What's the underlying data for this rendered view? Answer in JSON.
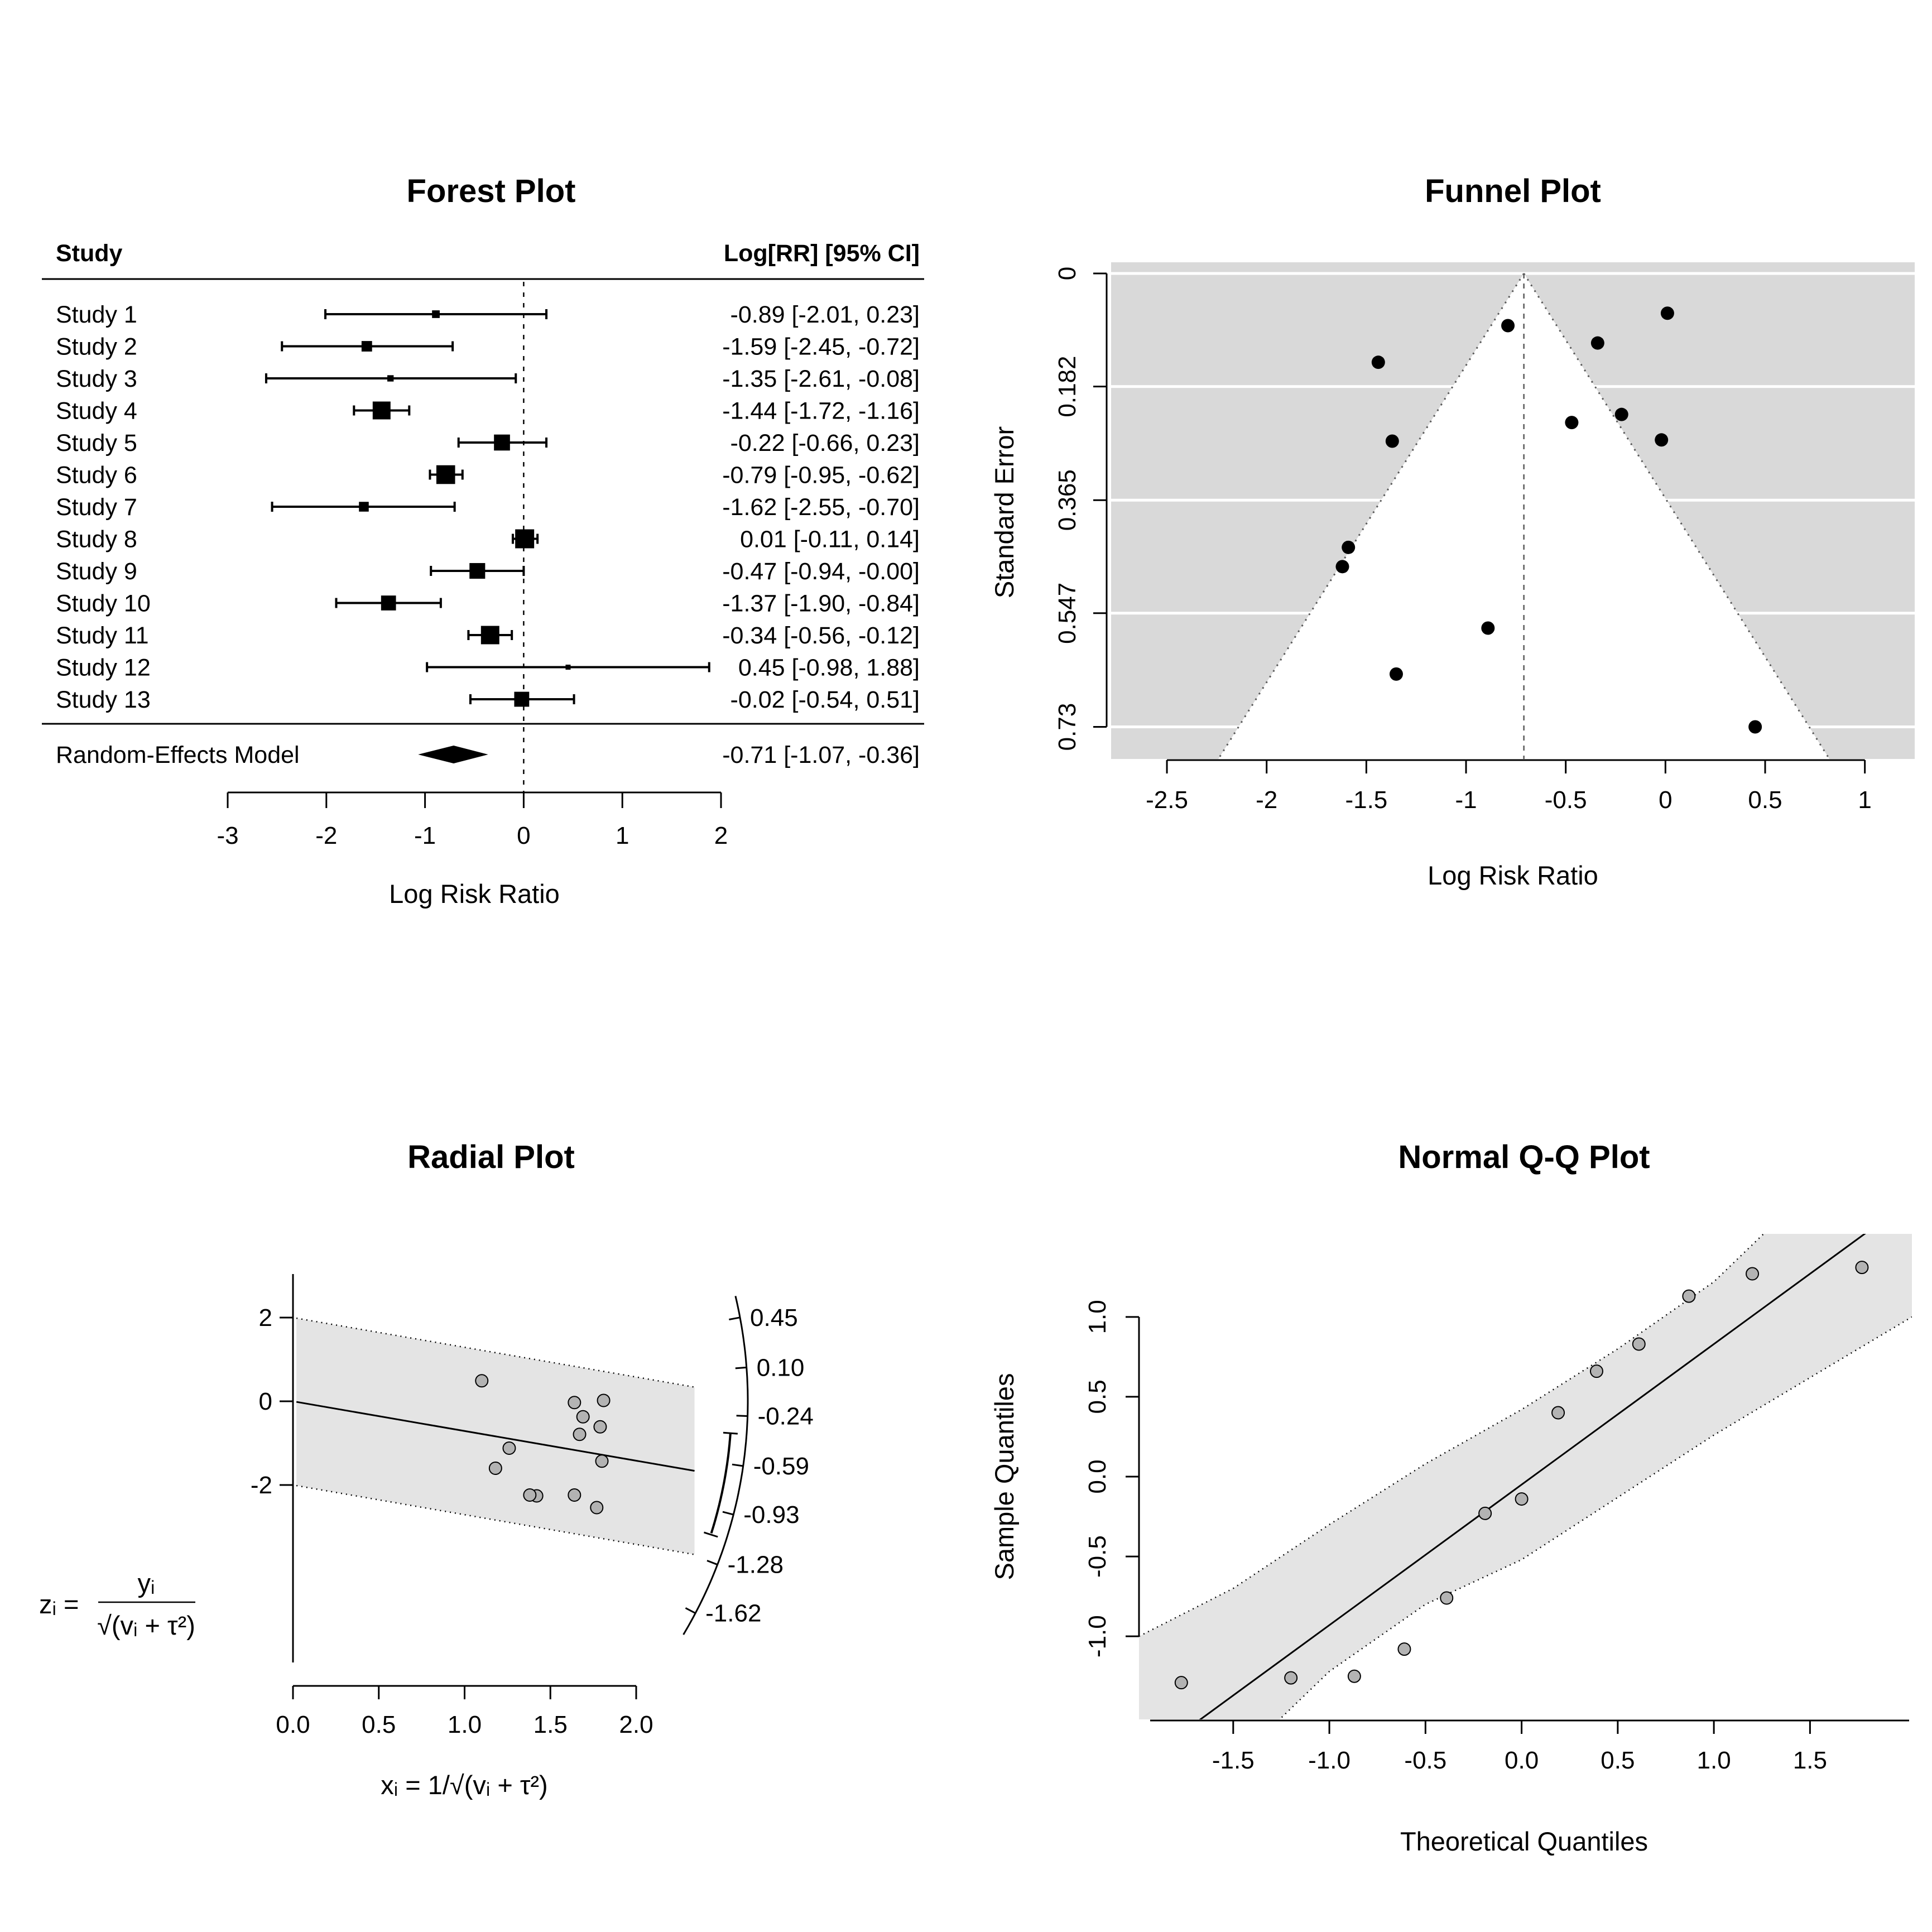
{
  "figure": {
    "background": "#ffffff",
    "point_fill_gray": "#b3b3b3",
    "point_fill_black": "#000000",
    "band_fill": "#e4e4e4",
    "funnel_shade": "#d9d9d9"
  },
  "chart_data": [
    {
      "id": "forest",
      "type": "forest",
      "title": "Forest Plot",
      "col_headers": {
        "study": "Study",
        "estimate": "Log[RR] [95% CI]"
      },
      "xlabel": "Log Risk Ratio",
      "xlim": [
        -3,
        2
      ],
      "xticks": [
        -3,
        -2,
        -1,
        0,
        1,
        2
      ],
      "xtick_labels": [
        "-3",
        "-2",
        "-1",
        "0",
        "1",
        "2"
      ],
      "reference_line": 0,
      "studies": [
        {
          "label": "Study 1",
          "yi": -0.89,
          "lb": -2.01,
          "ub": 0.23,
          "annotation": "-0.89 [-2.01,  0.23]"
        },
        {
          "label": "Study 2",
          "yi": -1.59,
          "lb": -2.45,
          "ub": -0.72,
          "annotation": "-1.59 [-2.45, -0.72]"
        },
        {
          "label": "Study 3",
          "yi": -1.35,
          "lb": -2.61,
          "ub": -0.08,
          "annotation": "-1.35 [-2.61, -0.08]"
        },
        {
          "label": "Study 4",
          "yi": -1.44,
          "lb": -1.72,
          "ub": -1.16,
          "annotation": "-1.44 [-1.72, -1.16]"
        },
        {
          "label": "Study 5",
          "yi": -0.22,
          "lb": -0.66,
          "ub": 0.23,
          "annotation": "-0.22 [-0.66,  0.23]"
        },
        {
          "label": "Study 6",
          "yi": -0.79,
          "lb": -0.95,
          "ub": -0.62,
          "annotation": "-0.79 [-0.95, -0.62]"
        },
        {
          "label": "Study 7",
          "yi": -1.62,
          "lb": -2.55,
          "ub": -0.7,
          "annotation": "-1.62 [-2.55, -0.70]"
        },
        {
          "label": "Study 8",
          "yi": 0.01,
          "lb": -0.11,
          "ub": 0.14,
          "annotation": "0.01 [-0.11,  0.14]"
        },
        {
          "label": "Study 9",
          "yi": -0.47,
          "lb": -0.94,
          "ub": 0.0,
          "annotation": "-0.47 [-0.94, -0.00]"
        },
        {
          "label": "Study 10",
          "yi": -1.37,
          "lb": -1.9,
          "ub": -0.84,
          "annotation": "-1.37 [-1.90, -0.84]"
        },
        {
          "label": "Study 11",
          "yi": -0.34,
          "lb": -0.56,
          "ub": -0.12,
          "annotation": "-0.34 [-0.56, -0.12]"
        },
        {
          "label": "Study 12",
          "yi": 0.45,
          "lb": -0.98,
          "ub": 1.88,
          "annotation": "0.45 [-0.98,  1.88]"
        },
        {
          "label": "Study 13",
          "yi": -0.02,
          "lb": -0.54,
          "ub": 0.51,
          "annotation": "-0.02 [-0.54,  0.51]"
        }
      ],
      "model": {
        "label": "Random-Effects Model",
        "yi": -0.71,
        "lb": -1.07,
        "ub": -0.36,
        "annotation": "-0.71 [-1.07, -0.36]"
      }
    },
    {
      "id": "funnel",
      "type": "funnel",
      "title": "Funnel Plot",
      "xlabel": "Log Risk Ratio",
      "ylabel": "Standard Error",
      "xlim": [
        -2.78,
        1.25
      ],
      "ylim": [
        0,
        0.782
      ],
      "xticks": [
        -2.5,
        -2,
        -1.5,
        -1,
        -0.5,
        0,
        0.5,
        1
      ],
      "xtick_labels": [
        "-2.5",
        "-2",
        "-1.5",
        "-1",
        "-0.5",
        "0",
        "0.5",
        "1"
      ],
      "yticks": [
        0,
        0.182,
        0.365,
        0.547,
        0.73
      ],
      "ytick_labels": [
        "0",
        "0.182",
        "0.365",
        "0.547",
        "0.73"
      ],
      "center": -0.71,
      "ci_z": 1.96,
      "shade_color": "#d9d9d9",
      "points": [
        {
          "x": -0.89,
          "y": 0.571
        },
        {
          "x": -1.59,
          "y": 0.441
        },
        {
          "x": -1.35,
          "y": 0.645
        },
        {
          "x": -1.44,
          "y": 0.143
        },
        {
          "x": -0.22,
          "y": 0.227
        },
        {
          "x": -0.79,
          "y": 0.084
        },
        {
          "x": -1.62,
          "y": 0.472
        },
        {
          "x": 0.01,
          "y": 0.064
        },
        {
          "x": -0.47,
          "y": 0.24
        },
        {
          "x": -1.37,
          "y": 0.27
        },
        {
          "x": -0.34,
          "y": 0.112
        },
        {
          "x": 0.45,
          "y": 0.73
        },
        {
          "x": -0.02,
          "y": 0.268
        }
      ]
    },
    {
      "id": "radial",
      "type": "radial",
      "title": "Radial Plot",
      "formula_z": {
        "lhs": "zᵢ",
        "eq": "=",
        "num": "yᵢ",
        "den": "√(vᵢ + τ²)"
      },
      "formula_x": "xᵢ = 1/√(vᵢ + τ²)",
      "xticks": [
        0,
        0.5,
        1,
        1.5,
        2
      ],
      "xtick_labels": [
        "0.0",
        "0.5",
        "1.0",
        "1.5",
        "2.0"
      ],
      "yticks": [
        2,
        0,
        -2
      ],
      "ytick_labels": [
        "2",
        "0",
        "-2"
      ],
      "slope": -0.71,
      "ci": [
        -1.07,
        -0.36
      ],
      "band_halfwidth": 2,
      "arc_values": [
        0.45,
        0.1,
        -0.24,
        -0.59,
        -0.93,
        -1.28,
        -1.62
      ],
      "arc_labels": [
        "0.45",
        "0.10",
        "-0.24",
        "-0.59",
        "-0.93",
        "-1.28",
        "-1.62"
      ],
      "points": [
        {
          "x": 1.26,
          "z": -1.12
        },
        {
          "x": 1.42,
          "z": -2.26
        },
        {
          "x": 1.18,
          "z": -1.6
        },
        {
          "x": 1.77,
          "z": -2.54
        },
        {
          "x": 1.69,
          "z": -0.37
        },
        {
          "x": 1.8,
          "z": -1.43
        },
        {
          "x": 1.38,
          "z": -2.24
        },
        {
          "x": 1.81,
          "z": 0.02
        },
        {
          "x": 1.67,
          "z": -0.79
        },
        {
          "x": 1.64,
          "z": -2.24
        },
        {
          "x": 1.79,
          "z": -0.61
        },
        {
          "x": 1.1,
          "z": 0.49
        },
        {
          "x": 1.64,
          "z": -0.03
        }
      ]
    },
    {
      "id": "qq",
      "type": "qq",
      "title": "Normal Q-Q Plot",
      "xlabel": "Theoretical Quantiles",
      "ylabel": "Sample Quantiles",
      "xlim": [
        -1.99,
        2.03
      ],
      "ylim": [
        -1.52,
        1.52
      ],
      "xticks": [
        -1.5,
        -1,
        -0.5,
        0,
        0.5,
        1,
        1.5
      ],
      "xtick_labels": [
        "-1.5",
        "-1.0",
        "-0.5",
        "0.0",
        "0.5",
        "1.0",
        "1.5"
      ],
      "yticks": [
        -1,
        -0.5,
        0,
        0.5,
        1
      ],
      "ytick_labels": [
        "-1.0",
        "-0.5",
        "0.0",
        "0.5",
        "1.0"
      ],
      "line": {
        "slope": 0.88,
        "intercept": -0.05
      },
      "envelope": {
        "upper": [
          [
            -1.99,
            -1.0
          ],
          [
            -1.5,
            -0.7
          ],
          [
            -1.0,
            -0.3
          ],
          [
            -0.5,
            0.08
          ],
          [
            0,
            0.42
          ],
          [
            0.5,
            0.8
          ],
          [
            1.0,
            1.22
          ],
          [
            1.5,
            1.8
          ],
          [
            2.03,
            2.3
          ]
        ],
        "lower": [
          [
            -1.99,
            -2.3
          ],
          [
            -1.5,
            -1.8
          ],
          [
            -1.0,
            -1.22
          ],
          [
            -0.5,
            -0.8
          ],
          [
            0,
            -0.52
          ],
          [
            0.5,
            -0.13
          ],
          [
            1.0,
            0.26
          ],
          [
            1.5,
            0.62
          ],
          [
            2.03,
            1.0
          ]
        ]
      },
      "points": [
        [
          -1.77,
          -1.29
        ],
        [
          -1.2,
          -1.26
        ],
        [
          -0.87,
          -1.25
        ],
        [
          -0.61,
          -1.08
        ],
        [
          -0.39,
          -0.76
        ],
        [
          -0.19,
          -0.23
        ],
        [
          0.0,
          -0.14
        ],
        [
          0.19,
          0.4
        ],
        [
          0.39,
          0.66
        ],
        [
          0.61,
          0.83
        ],
        [
          0.87,
          1.13
        ],
        [
          1.2,
          1.27
        ],
        [
          1.77,
          1.31
        ]
      ]
    }
  ]
}
